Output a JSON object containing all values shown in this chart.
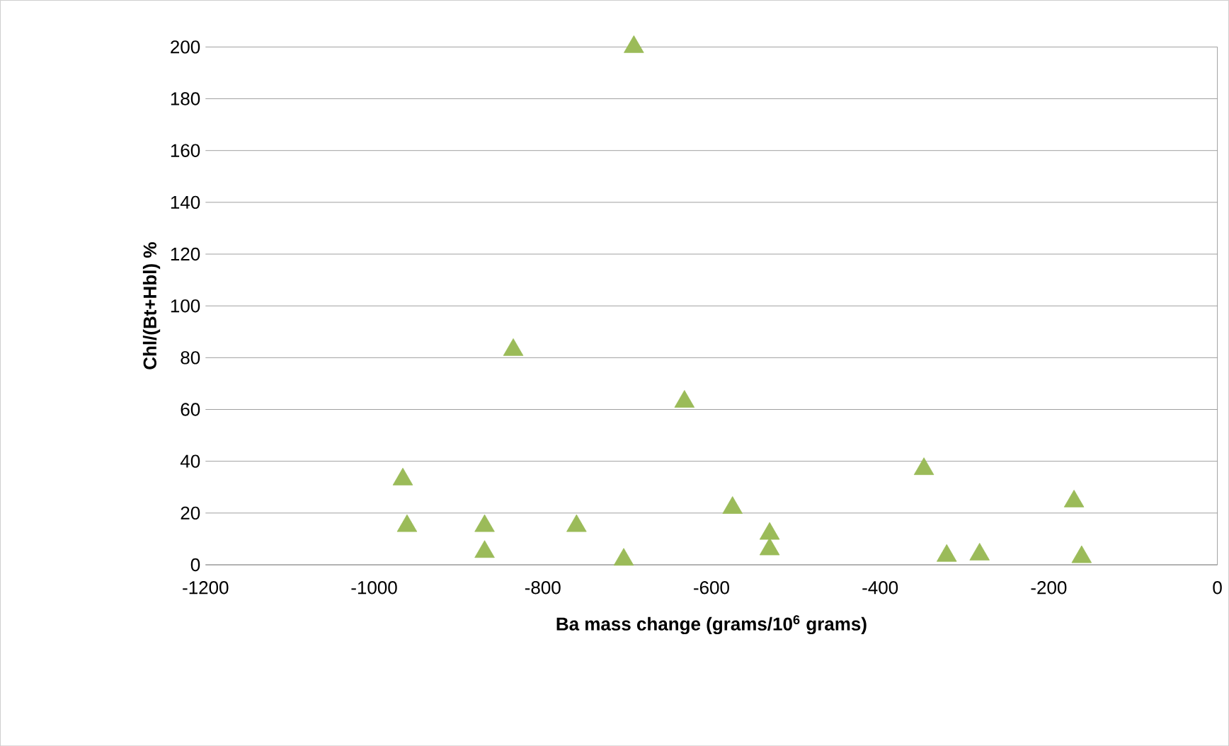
{
  "chart_data": {
    "type": "scatter",
    "xlabel": "Ba mass change (grams/10$^{6}$ grams)",
    "ylabel": "Chl/(Bt+Hbl) %",
    "x": [
      -966,
      -961,
      -869,
      -869,
      -835,
      -760,
      -704,
      -692,
      -632,
      -575,
      -531,
      -531,
      -348,
      -321,
      -282,
      -170,
      -161
    ],
    "series": [
      {
        "color": "#9bbb59",
        "values": [
          33,
          15,
          15,
          5,
          83,
          15,
          2,
          200,
          63,
          22,
          12,
          6,
          37,
          3.5,
          4,
          24.5,
          3
        ]
      }
    ],
    "xlim": [
      -1200,
      0
    ],
    "xticks": [
      -1200,
      -1000,
      -800,
      -600,
      -400,
      -200,
      0
    ],
    "ylim": [
      0,
      200
    ],
    "yticks": [
      0,
      20,
      40,
      60,
      80,
      100,
      120,
      140,
      160,
      180,
      200
    ],
    "grid": "y",
    "marker": "triangle"
  }
}
